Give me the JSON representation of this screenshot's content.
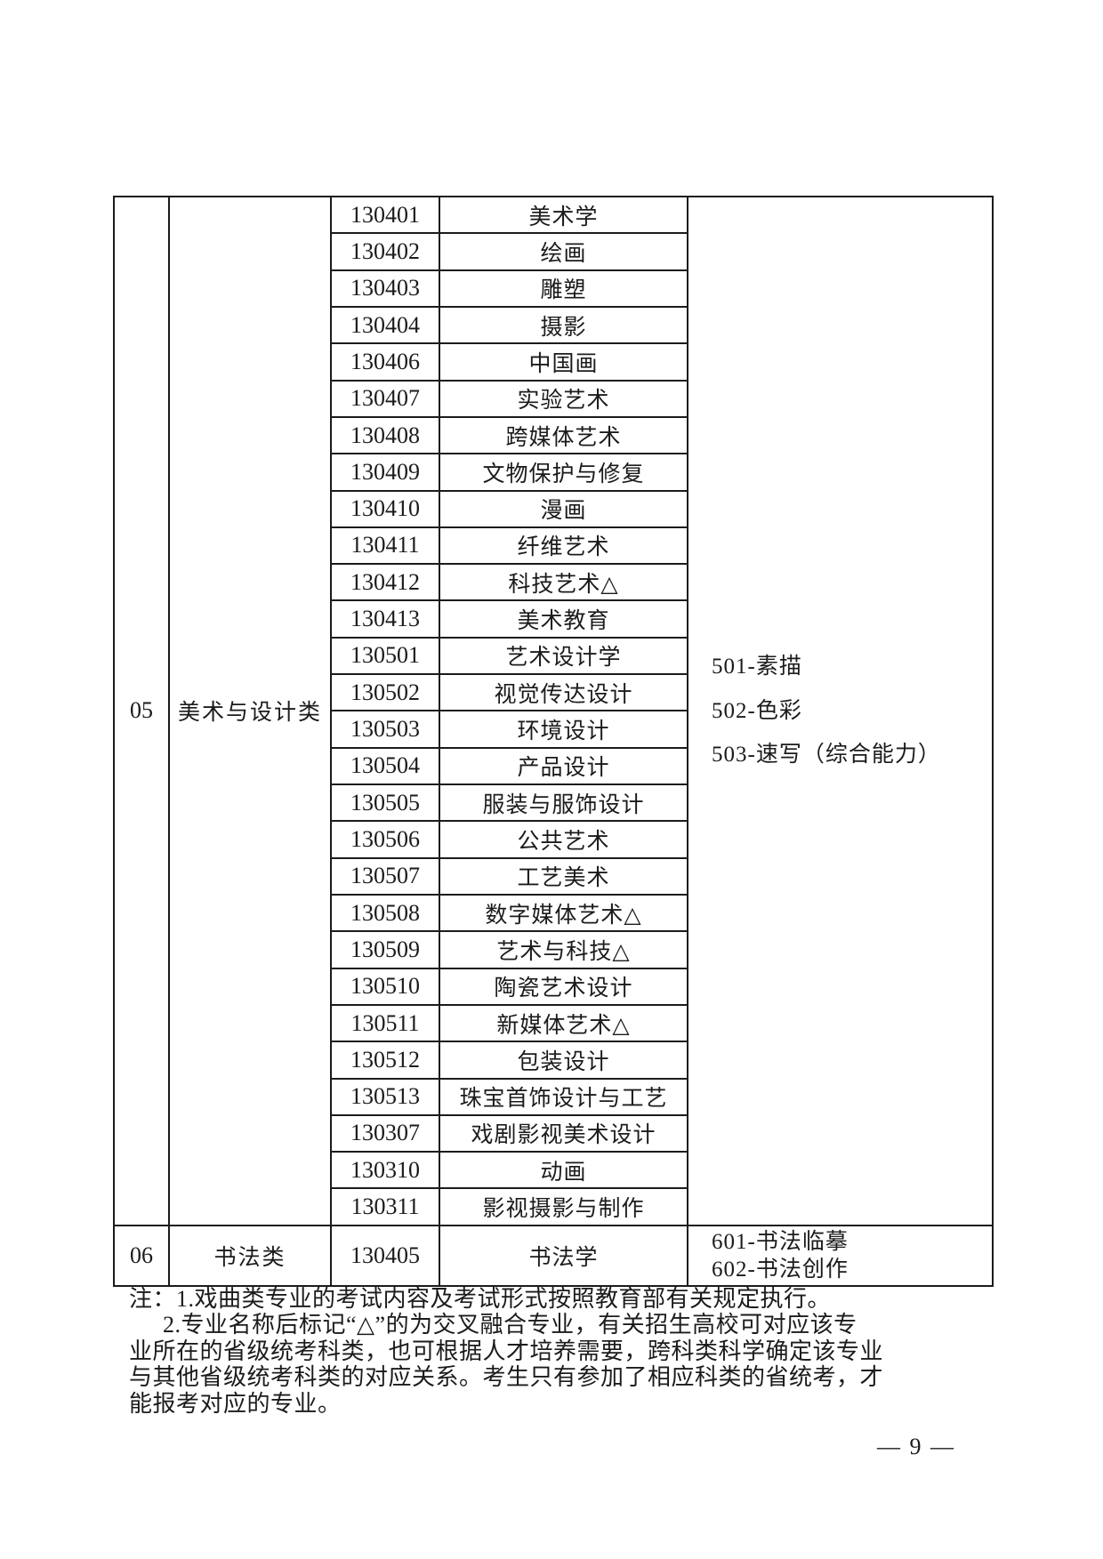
{
  "table": {
    "sections": [
      {
        "category_no": "05",
        "category_name": "美术与设计类",
        "majors": [
          {
            "code": "130401",
            "name": "美术学"
          },
          {
            "code": "130402",
            "name": "绘画"
          },
          {
            "code": "130403",
            "name": "雕塑"
          },
          {
            "code": "130404",
            "name": "摄影"
          },
          {
            "code": "130406",
            "name": "中国画"
          },
          {
            "code": "130407",
            "name": "实验艺术"
          },
          {
            "code": "130408",
            "name": "跨媒体艺术"
          },
          {
            "code": "130409",
            "name": "文物保护与修复"
          },
          {
            "code": "130410",
            "name": "漫画"
          },
          {
            "code": "130411",
            "name": "纤维艺术"
          },
          {
            "code": "130412",
            "name": "科技艺术△"
          },
          {
            "code": "130413",
            "name": "美术教育"
          },
          {
            "code": "130501",
            "name": "艺术设计学"
          },
          {
            "code": "130502",
            "name": "视觉传达设计"
          },
          {
            "code": "130503",
            "name": "环境设计"
          },
          {
            "code": "130504",
            "name": "产品设计"
          },
          {
            "code": "130505",
            "name": "服装与服饰设计"
          },
          {
            "code": "130506",
            "name": "公共艺术"
          },
          {
            "code": "130507",
            "name": "工艺美术"
          },
          {
            "code": "130508",
            "name": "数字媒体艺术△"
          },
          {
            "code": "130509",
            "name": "艺术与科技△"
          },
          {
            "code": "130510",
            "name": "陶瓷艺术设计"
          },
          {
            "code": "130511",
            "name": "新媒体艺术△"
          },
          {
            "code": "130512",
            "name": "包装设计"
          },
          {
            "code": "130513",
            "name": "珠宝首饰设计与工艺"
          },
          {
            "code": "130307",
            "name": "戏剧影视美术设计"
          },
          {
            "code": "130310",
            "name": "动画"
          },
          {
            "code": "130311",
            "name": "影视摄影与制作"
          }
        ],
        "exam_subjects": [
          "501-素描",
          "502-色彩",
          "503-速写（综合能力）"
        ]
      },
      {
        "category_no": "06",
        "category_name": "书法类",
        "majors": [
          {
            "code": "130405",
            "name": "书法学"
          }
        ],
        "exam_subjects": [
          "601-书法临摹",
          "602-书法创作"
        ]
      }
    ]
  },
  "notes": {
    "lines": [
      "注：1.戏曲类专业的考试内容及考试形式按照教育部有关规定执行。",
      "2.专业名称后标记“△”的为交叉融合专业，有关招生高校可对应该专",
      "业所在的省级统考科类，也可根据人才培养需要，跨科类科学确定该专业",
      "与其他省级统考科类的对应关系。考生只有参加了相应科类的省统考，才",
      "能报考对应的专业。"
    ]
  },
  "page": {
    "number_label": "— 9 —"
  }
}
